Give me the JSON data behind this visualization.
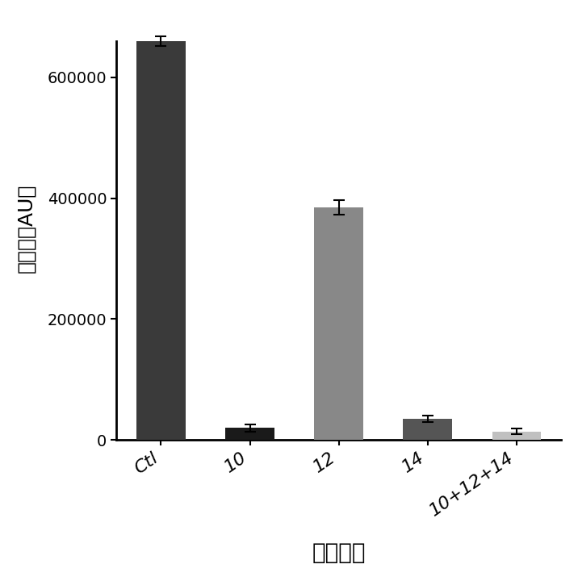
{
  "categories": [
    "Ctl",
    "10",
    "12",
    "14",
    "10+12+14"
  ],
  "values": [
    660000,
    20000,
    385000,
    35000,
    14000
  ],
  "errors": [
    8000,
    6000,
    12000,
    5000,
    5000
  ],
  "bar_colors": [
    "#3a3a3a",
    "#1a1a1a",
    "#888888",
    "#555555",
    "#c0c0c0"
  ],
  "ylabel": "荧光値（AU）",
  "xlabel": "错配位点",
  "ylim": [
    0,
    700000
  ],
  "yticks": [
    0,
    200000,
    400000,
    600000
  ],
  "background_color": "#ffffff",
  "bar_width": 0.55,
  "tick_label_rotation": 35
}
